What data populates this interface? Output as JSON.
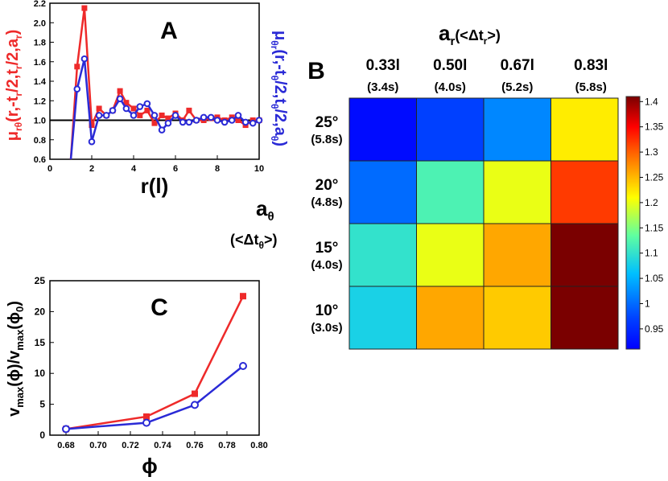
{
  "panels": {
    "A": {
      "letter": "A"
    },
    "B": {
      "letter": "B"
    },
    "C": {
      "letter": "C"
    }
  },
  "colors": {
    "red": "#ee2a2a",
    "blue": "#2a2ad6",
    "black": "#000000"
  },
  "chart_data": [
    {
      "id": "A",
      "type": "line",
      "title": "A",
      "xlabel": "r(l)",
      "ylabel_left": {
        "base": "μ",
        "sub": "rθ",
        "args": "(r,-t",
        "sub2": "r",
        "rest": "/2,t",
        "sub3": "r",
        "rest2": "/2,a",
        "sub4": "r",
        "close": ")"
      },
      "ylabel_right": {
        "base": "μ",
        "sub": "θr",
        "args": "(r,-t",
        "sub2": "θ",
        "rest": "/2,t",
        "sub3": "θ",
        "rest2": "/2,a",
        "sub4": "θ",
        "close": ")"
      },
      "xlim": [
        0,
        10
      ],
      "ylim": [
        0.6,
        2.2
      ],
      "xticks": [
        "0",
        "2",
        "4",
        "6",
        "8",
        "10"
      ],
      "yticks": [
        "0.6",
        "0.8",
        "1.0",
        "1.2",
        "1.4",
        "1.6",
        "1.8",
        "2.0",
        "2.2"
      ],
      "reference_line": 1.0,
      "series": [
        {
          "name": "μrθ",
          "color": "#ee2a2a",
          "marker": "square",
          "x": [
            1.0,
            1.3,
            1.65,
            2.0,
            2.35,
            2.7,
            3.0,
            3.35,
            3.65,
            4.0,
            4.3,
            4.65,
            5.0,
            5.35,
            5.65,
            6.0,
            6.35,
            6.65,
            7.0,
            7.35,
            7.7,
            8.0,
            8.35,
            8.7,
            9.0,
            9.35,
            9.7,
            10.0
          ],
          "values": [
            0.6,
            1.55,
            2.15,
            0.95,
            1.12,
            1.05,
            1.1,
            1.3,
            1.18,
            1.12,
            1.05,
            1.1,
            0.97,
            1.05,
            1.02,
            1.07,
            1.0,
            1.1,
            1.0,
            1.0,
            1.02,
            1.03,
            1.0,
            1.03,
            1.0,
            0.95,
            1.0,
            1.0
          ]
        },
        {
          "name": "μθr",
          "color": "#2a2ad6",
          "marker": "circle",
          "x": [
            1.0,
            1.3,
            1.65,
            2.0,
            2.35,
            2.7,
            3.0,
            3.35,
            3.65,
            4.0,
            4.3,
            4.65,
            5.0,
            5.35,
            5.65,
            6.0,
            6.35,
            6.65,
            7.0,
            7.35,
            7.7,
            8.0,
            8.35,
            8.7,
            9.0,
            9.35,
            9.7,
            10.0
          ],
          "values": [
            0.6,
            1.32,
            1.63,
            0.78,
            1.05,
            1.05,
            1.1,
            1.22,
            1.12,
            1.05,
            1.14,
            1.17,
            1.05,
            0.9,
            0.97,
            1.05,
            0.98,
            0.98,
            1.0,
            1.03,
            1.03,
            1.0,
            0.98,
            1.0,
            1.05,
            0.98,
            0.97,
            1.0
          ]
        }
      ]
    },
    {
      "id": "B",
      "type": "heatmap",
      "title": "B",
      "xlabel": {
        "base": "a",
        "sub": "r",
        "paren_open": "(<Δt",
        "paren_sub": "r",
        "paren_close": ">)"
      },
      "ylabel": {
        "base": "a",
        "sub": "θ",
        "paren_open": "(<Δt",
        "paren_sub": "θ",
        "paren_close": ">)"
      },
      "columns": [
        {
          "label": "0.33l",
          "sub": "(3.4s)"
        },
        {
          "label": "0.50l",
          "sub": "(4.0s)"
        },
        {
          "label": "0.67l",
          "sub": "(5.2s)"
        },
        {
          "label": "0.83l",
          "sub": "(5.8s)"
        }
      ],
      "rows": [
        {
          "label": "25°",
          "sub": "(5.8s)"
        },
        {
          "label": "20°",
          "sub": "(4.8s)"
        },
        {
          "label": "15°",
          "sub": "(4.0s)"
        },
        {
          "label": "10°",
          "sub": "(3.0s)"
        }
      ],
      "values": [
        [
          0.92,
          0.97,
          1.02,
          1.22
        ],
        [
          1.0,
          1.12,
          1.2,
          1.32
        ],
        [
          1.1,
          1.2,
          1.26,
          1.41
        ],
        [
          1.08,
          1.26,
          1.24,
          1.41
        ]
      ],
      "colorbar": {
        "min": 0.91,
        "max": 1.41,
        "ticks": [
          "1.4",
          "1.35",
          "1.3",
          "1.25",
          "1.2",
          "1.15",
          "1.1",
          "1.05",
          "1",
          "0.95"
        ],
        "tick_values": [
          1.4,
          1.35,
          1.3,
          1.25,
          1.2,
          1.15,
          1.1,
          1.05,
          1.0,
          0.95
        ]
      }
    },
    {
      "id": "C",
      "type": "line",
      "title": "C",
      "xlabel": "ϕ",
      "ylabel": {
        "v1": "v",
        "s1": "max",
        "a1": "(ϕ)/v",
        "s2": "max",
        "a2": "(ϕ",
        "s3": "0",
        "a3": ")"
      },
      "xlim": [
        0.67,
        0.8
      ],
      "ylim": [
        0,
        25
      ],
      "xticks": [
        "0.68",
        "0.70",
        "0.72",
        "0.74",
        "0.76",
        "0.78",
        "0.80"
      ],
      "xtick_values": [
        0.68,
        0.7,
        0.72,
        0.74,
        0.76,
        0.78,
        0.8
      ],
      "yticks": [
        "0",
        "5",
        "10",
        "15",
        "20",
        "25"
      ],
      "ytick_values": [
        0,
        5,
        10,
        15,
        20,
        25
      ],
      "series": [
        {
          "name": "red",
          "color": "#ee2a2a",
          "marker": "square",
          "x": [
            0.68,
            0.73,
            0.76,
            0.79
          ],
          "values": [
            1.0,
            3.0,
            6.7,
            22.5
          ]
        },
        {
          "name": "blue",
          "color": "#2a2ad6",
          "marker": "circle",
          "x": [
            0.68,
            0.73,
            0.76,
            0.79
          ],
          "values": [
            1.0,
            2.0,
            4.9,
            11.2
          ]
        }
      ]
    }
  ]
}
